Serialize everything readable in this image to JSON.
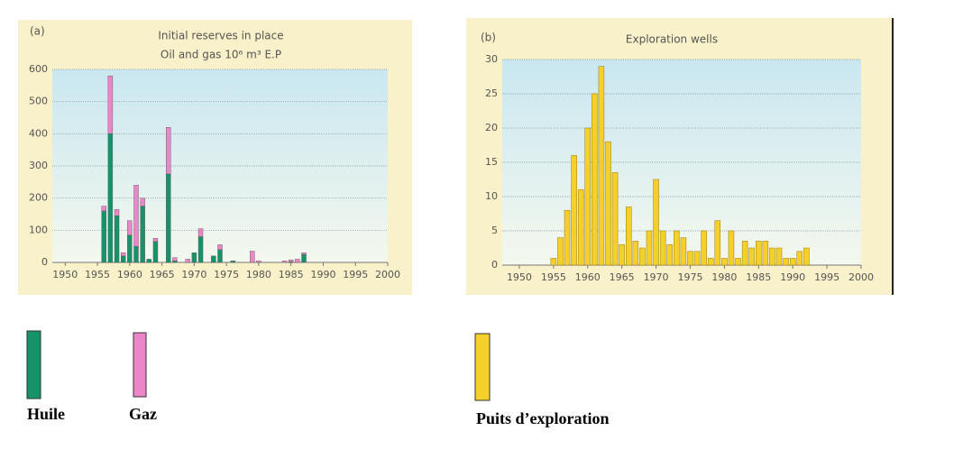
{
  "chart_data": [
    {
      "type": "stacked-bar",
      "label": "(a)",
      "title": "Initial reserves in place",
      "subtitle": "Oil and gas 10⁶ m³ E.P",
      "x": [
        1956,
        1957,
        1958,
        1959,
        1960,
        1961,
        1962,
        1963,
        1964,
        1966,
        1967,
        1969,
        1970,
        1971,
        1973,
        1974,
        1976,
        1979,
        1980,
        1984,
        1985,
        1986,
        1987
      ],
      "series": [
        {
          "name": "Huile",
          "color": "#16936a",
          "values": [
            160,
            400,
            145,
            20,
            85,
            50,
            175,
            10,
            65,
            275,
            5,
            0,
            30,
            80,
            20,
            40,
            5,
            0,
            0,
            0,
            2,
            0,
            25
          ]
        },
        {
          "name": "Gaz",
          "color": "#ec86c9",
          "values": [
            15,
            180,
            20,
            10,
            45,
            190,
            25,
            0,
            10,
            145,
            10,
            10,
            0,
            25,
            0,
            15,
            0,
            35,
            5,
            5,
            6,
            10,
            5
          ]
        }
      ],
      "xlim": [
        1948,
        2000
      ],
      "xticks": [
        1950,
        1955,
        1960,
        1965,
        1970,
        1975,
        1980,
        1985,
        1990,
        1995,
        2000
      ],
      "ylim": [
        0,
        600
      ],
      "yticks": [
        0,
        100,
        200,
        300,
        400,
        500,
        600
      ],
      "grid": true
    },
    {
      "type": "bar",
      "label": "(b)",
      "title": "Exploration wells",
      "x": [
        1955,
        1956,
        1957,
        1958,
        1959,
        1960,
        1961,
        1962,
        1963,
        1964,
        1965,
        1966,
        1967,
        1968,
        1969,
        1970,
        1971,
        1972,
        1973,
        1974,
        1975,
        1976,
        1977,
        1978,
        1979,
        1980,
        1981,
        1982,
        1983,
        1984,
        1985,
        1986,
        1987,
        1988,
        1989,
        1990,
        1991,
        1992
      ],
      "series": [
        {
          "name": "Puits d’exploration",
          "color": "#f5d02a",
          "values": [
            1,
            4,
            8,
            16,
            11,
            20,
            25,
            29,
            18,
            13.5,
            3,
            8.5,
            3.5,
            2.5,
            5,
            12.5,
            5,
            3,
            5,
            4,
            2,
            2,
            5,
            1,
            6.5,
            1,
            5,
            1,
            3.5,
            2.5,
            3.5,
            3.5,
            2.5,
            2.5,
            1,
            1,
            2,
            2.5
          ]
        }
      ],
      "xlim": [
        1947.5,
        2000
      ],
      "xticks": [
        1950,
        1955,
        1960,
        1965,
        1970,
        1975,
        1980,
        1985,
        1990,
        1995,
        2000
      ],
      "ylim": [
        0,
        30
      ],
      "yticks": [
        0,
        5,
        10,
        15,
        20,
        25,
        30
      ],
      "grid": true
    }
  ]
}
